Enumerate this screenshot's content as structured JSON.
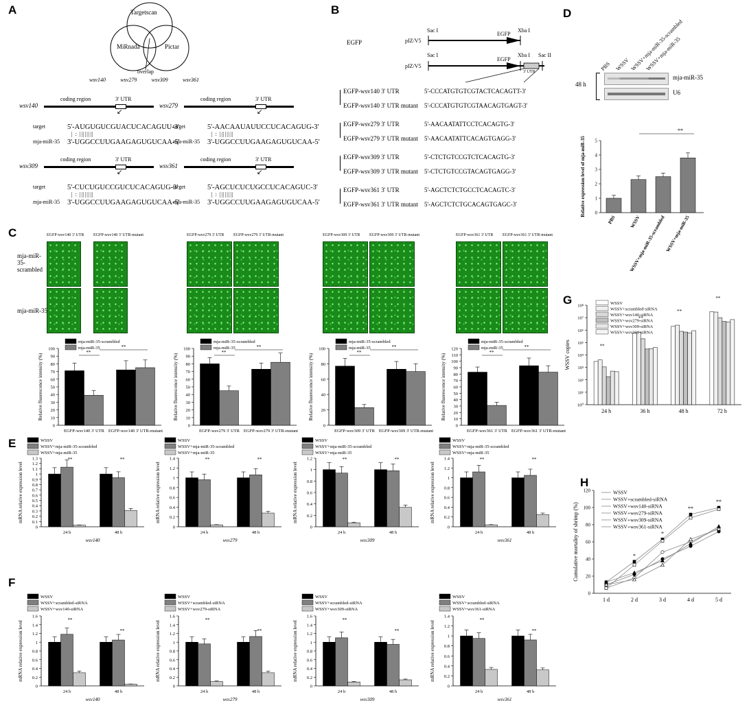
{
  "panels": {
    "A": "A",
    "B": "B",
    "C": "C",
    "D": "D",
    "E": "E",
    "F": "F",
    "G": "G",
    "H": "H"
  },
  "panelA": {
    "venn": {
      "top": "Targetscan",
      "left": "MiRnada",
      "right": "Pictar",
      "overlap": "overlap"
    },
    "genes": [
      "wsv140",
      "wsv279",
      "wsv309",
      "wsv361"
    ],
    "coding_region": "coding region",
    "utr": "3' UTR",
    "target_label": "target",
    "mir_label": "mja-miR-35",
    "targets": [
      {
        "gene": "wsv140",
        "target": "5'-AUGUGUCGUACUCACAGUU-3'",
        "mir": "3'-UGGCCUUGAAGAGUGUCAA-5'"
      },
      {
        "gene": "wsv279",
        "target": "5'-AACAAUAUUCCUCACAGUG-3'",
        "mir": "3'-UGGCCUUGAAGAGUGUCAA-5'"
      },
      {
        "gene": "wsv309",
        "target": "5'-CUCUGUCCGUCUCACAGUG-3'",
        "mir": "3'-UGGCCUUGAAGAGUGUCAA-5'"
      },
      {
        "gene": "wsv361",
        "target": "5'-AGCUCUCUGCCUCACAGUC-3'",
        "mir": "3'-UGGCCUUGAAGAGUGUCAA-5'"
      }
    ]
  },
  "panelB": {
    "egfp": "EGFP",
    "vector": "pIZ/V5",
    "sac1": "Sac I",
    "xba1": "Xba I",
    "sac2": "Sac II",
    "utr": "3' UTR",
    "constructs": [
      {
        "name": "EGFP-wsv140 3' UTR",
        "seq": "5'-CCCATGTGTCGTACTCACAGTT-3'"
      },
      {
        "name": "EGFP-wsv140 3' UTR mutant",
        "seq": "5'-CCCATGTGTCGTAACAGTGAGT-3'"
      },
      {
        "name": "EGFP-wsv279 3' UTR",
        "seq": "5'-AACAATATTCCTCACAGTG-3'"
      },
      {
        "name": "EGFP-wsv279 3' UTR mutant",
        "seq": "5'-AACAATATTCACAGTGAGG-3'"
      },
      {
        "name": "EGFP-wsv309 3' UTR",
        "seq": "5'-CTCTGTCCGTCTCACAGTG-3'"
      },
      {
        "name": "EGFP-wsv309 3' UTR mutant",
        "seq": "5'-CTCTGTCCGTACAGTGAGG-3'"
      },
      {
        "name": "EGFP-wsv361 3' UTR",
        "seq": "5'-AGCTCTCTGCCTCACAGTC-3'"
      },
      {
        "name": "EGFP-wsv361 3' UTR mutant",
        "seq": "5'-AGCTCTCTGCACAGTGAGC-3'"
      }
    ]
  },
  "panelD": {
    "blot_time": "48 h",
    "lanes": [
      "PBS",
      "WSSV",
      "WSSV+mja-miR-35-scrambled",
      "WSSV+mja-miR-35"
    ],
    "bands": [
      "mja-miR-35",
      "U6"
    ],
    "sig": "**"
  },
  "panelC": {
    "row_labels": [
      "mja-miR-35-scrambled",
      "mja-miR-35"
    ],
    "sig": "**",
    "image_headers": [
      [
        "EGFP-wsv140 3' UTR",
        "EGFP-wsv140 3' UTR-mutant"
      ],
      [
        "EGFP-wsv279 3' UTR",
        "EGFP-wsv279 3' UTR-mutant"
      ],
      [
        "EGFP-wsv309 3' UTR",
        "EGFP-wsv309 3' UTR-mutant"
      ],
      [
        "EGFP-wsv361 3' UTR",
        "EGFP-wsv361 3' UTR-mutant"
      ]
    ]
  },
  "panelG": {
    "legend": [
      "WSSV",
      "WSSV+scrambled-siRNA",
      "WSSV+wsv140-siRNA",
      "WSSV+wsv279-siRNA",
      "WSSV+wsv309-siRNA",
      "WSSV+wsv361-siRNA"
    ],
    "sig": "**"
  },
  "panelH": {
    "legend": [
      "WSSV",
      "WSSV+scrambled-siRNA",
      "WSSV+wsv140-siRNA",
      "WSSV+wsv279-siRNA",
      "WSSV+wsv309-siRNA",
      "WSSV+wsv361-siRNA"
    ],
    "sig": [
      "*",
      "*",
      "**",
      "**"
    ]
  },
  "chart_data": [
    {
      "id": "D",
      "type": "bar",
      "categories": [
        "PBS",
        "WSSV",
        "WSSV+mja-miR-35-scrambled",
        "WSSV+mja-miR-35"
      ],
      "values": [
        1.0,
        2.3,
        2.5,
        3.8
      ],
      "errors": [
        0.2,
        0.25,
        0.25,
        0.35
      ],
      "ylabel": "Relative expression level of mja-miR-35",
      "ylim": [
        0,
        5
      ],
      "yticks": [
        0,
        1,
        2,
        3,
        4,
        5
      ]
    },
    {
      "id": "C1",
      "type": "bar",
      "categories": [
        "EGFP-wsv140 3' UTR",
        "EGFP-wsv140 3' UTR-mutant"
      ],
      "series": [
        {
          "name": "mja-miR-35-scrambled",
          "values": [
            71,
            72
          ]
        },
        {
          "name": "mja-miR-35",
          "values": [
            39,
            75
          ]
        }
      ],
      "errors": [
        [
          10,
          12
        ],
        [
          6,
          10
        ]
      ],
      "ylabel": "Relative fluorescence intensity (%)",
      "ylim": [
        0,
        100
      ],
      "yticks": [
        0,
        10,
        20,
        30,
        40,
        50,
        60,
        70,
        80,
        90,
        100
      ]
    },
    {
      "id": "C2",
      "type": "bar",
      "categories": [
        "EGFP-wsv279 3' UTR",
        "EGFP-wsv279 3' UTR-mutant"
      ],
      "series": [
        {
          "name": "mja-miR-35-scrambled",
          "values": [
            80,
            73
          ]
        },
        {
          "name": "mja-miR-35",
          "values": [
            45,
            82
          ]
        }
      ],
      "errors": [
        [
          8,
          8
        ],
        [
          6,
          12
        ]
      ],
      "ylabel": "Relative fluorescence intensity (%)",
      "ylim": [
        0,
        100
      ],
      "yticks": [
        0,
        10,
        20,
        30,
        40,
        50,
        60,
        70,
        80,
        90,
        100
      ]
    },
    {
      "id": "C3",
      "type": "bar",
      "categories": [
        "EGFP-wsv309 3' UTR",
        "EGFP-wsv309 3' UTR-mutant"
      ],
      "series": [
        {
          "name": "mja-miR-35-scrambled",
          "values": [
            77,
            73
          ]
        },
        {
          "name": "mja-miR-35",
          "values": [
            23,
            70
          ]
        }
      ],
      "errors": [
        [
          10,
          10
        ],
        [
          4,
          10
        ]
      ],
      "ylabel": "Relative fluorescence intensity (%)",
      "ylim": [
        0,
        100
      ],
      "yticks": [
        0,
        20,
        40,
        60,
        80,
        100
      ]
    },
    {
      "id": "C4",
      "type": "bar",
      "categories": [
        "EGFP-wsv361 3' UTR",
        "EGFP-wsv361 3' UTR-mutant"
      ],
      "series": [
        {
          "name": "mja-miR-35-scrambled",
          "values": [
            83,
            93
          ]
        },
        {
          "name": "mja-miR-35",
          "values": [
            31,
            83
          ]
        }
      ],
      "errors": [
        [
          8,
          12
        ],
        [
          5,
          10
        ]
      ],
      "ylabel": "Relative fluorescence intensity (%)",
      "ylim": [
        0,
        120
      ],
      "yticks": [
        0,
        10,
        20,
        30,
        40,
        50,
        60,
        70,
        80,
        90,
        100,
        110,
        120
      ]
    },
    {
      "id": "E1",
      "type": "bar",
      "categories": [
        "24 h",
        "48 h"
      ],
      "xlabel": "wsv140",
      "series": [
        {
          "name": "WSSV",
          "values": [
            1.0,
            1.0
          ]
        },
        {
          "name": "WSSV+mja-miR-35-scrambled",
          "values": [
            1.13,
            0.93
          ]
        },
        {
          "name": "WSSV+mja-miR-35",
          "values": [
            0.03,
            0.31
          ]
        }
      ],
      "ylabel": "mRNA relative expression level",
      "ylim": [
        0,
        1.3
      ],
      "yticks": [
        0,
        0.1,
        0.2,
        0.3,
        0.4,
        0.5,
        0.6,
        0.7,
        0.8,
        0.9,
        1.0,
        1.1,
        1.2,
        1.3
      ]
    },
    {
      "id": "E2",
      "type": "bar",
      "categories": [
        "24 h",
        "48 h"
      ],
      "xlabel": "wsv279",
      "series": [
        {
          "name": "WSSV",
          "values": [
            1.0,
            1.0
          ]
        },
        {
          "name": "WSSV+mja-miR-35-scrambled",
          "values": [
            0.96,
            1.06
          ]
        },
        {
          "name": "WSSV+mja-miR-35",
          "values": [
            0.04,
            0.28
          ]
        }
      ],
      "ylabel": "mRNA relative expression level",
      "ylim": [
        0,
        1.4
      ],
      "yticks": [
        0,
        0.2,
        0.4,
        0.6,
        0.8,
        1.0,
        1.2,
        1.4
      ]
    },
    {
      "id": "E3",
      "type": "bar",
      "categories": [
        "24 h",
        "48 h"
      ],
      "xlabel": "wsv309",
      "series": [
        {
          "name": "WSSV",
          "values": [
            1.0,
            1.0
          ]
        },
        {
          "name": "WSSV+mja-miR-35-scrambled",
          "values": [
            0.94,
            0.98
          ]
        },
        {
          "name": "WSSV+mja-miR-35",
          "values": [
            0.07,
            0.34
          ]
        }
      ],
      "ylabel": "mRNA relative expression level",
      "ylim": [
        0,
        1.2
      ],
      "yticks": [
        0,
        0.2,
        0.4,
        0.6,
        0.8,
        1.0,
        1.2
      ]
    },
    {
      "id": "E4",
      "type": "bar",
      "categories": [
        "24 h",
        "48 h"
      ],
      "xlabel": "wsv361",
      "series": [
        {
          "name": "WSSV",
          "values": [
            1.0,
            1.0
          ]
        },
        {
          "name": "WSSV+mja-miR-35-scrambled",
          "values": [
            1.12,
            1.05
          ]
        },
        {
          "name": "WSSV+mja-miR-35",
          "values": [
            0.04,
            0.25
          ]
        }
      ],
      "ylabel": "mRNA relative expression level",
      "ylim": [
        0,
        1.4
      ],
      "yticks": [
        0,
        0.2,
        0.4,
        0.6,
        0.8,
        1.0,
        1.2,
        1.4
      ]
    },
    {
      "id": "F1",
      "type": "bar",
      "categories": [
        "24 h",
        "48 h"
      ],
      "xlabel": "wsv140",
      "series": [
        {
          "name": "WSSV",
          "values": [
            1.0,
            1.0
          ]
        },
        {
          "name": "WSSV+scrambled-siRNA",
          "values": [
            1.18,
            1.05
          ]
        },
        {
          "name": "WSSV+wsv140-siRNA",
          "values": [
            0.3,
            0.04
          ]
        }
      ],
      "ylabel": "mRNA relative expression level",
      "ylim": [
        0,
        1.6
      ],
      "yticks": [
        0,
        0.2,
        0.4,
        0.6,
        0.8,
        1.0,
        1.2,
        1.4,
        1.6
      ]
    },
    {
      "id": "F2",
      "type": "bar",
      "categories": [
        "24 h",
        "48 h"
      ],
      "xlabel": "wsv279",
      "series": [
        {
          "name": "WSSV",
          "values": [
            1.0,
            1.0
          ]
        },
        {
          "name": "WSSV+scrambled-siRNA",
          "values": [
            0.96,
            1.13
          ]
        },
        {
          "name": "WSSV+wsv279-siRNA",
          "values": [
            0.1,
            0.3
          ]
        }
      ],
      "ylabel": "mRNA relative expression level",
      "ylim": [
        0,
        1.6
      ],
      "yticks": [
        0,
        0.2,
        0.4,
        0.6,
        0.8,
        1.0,
        1.2,
        1.4,
        1.6
      ]
    },
    {
      "id": "F3",
      "type": "bar",
      "categories": [
        "24 h",
        "48 h"
      ],
      "xlabel": "wsv309",
      "series": [
        {
          "name": "WSSV",
          "values": [
            1.0,
            1.0
          ]
        },
        {
          "name": "WSSV+scrambled-siRNA",
          "values": [
            1.1,
            0.95
          ]
        },
        {
          "name": "WSSV+wsv309-siRNA",
          "values": [
            0.09,
            0.14
          ]
        }
      ],
      "ylabel": "mRNA relative expression level",
      "ylim": [
        0,
        1.6
      ],
      "yticks": [
        0,
        0.2,
        0.4,
        0.6,
        0.8,
        1.0,
        1.2,
        1.4,
        1.6
      ]
    },
    {
      "id": "F4",
      "type": "bar",
      "categories": [
        "24 h",
        "48 h"
      ],
      "xlabel": "wsv361",
      "series": [
        {
          "name": "WSSV",
          "values": [
            1.0,
            1.0
          ]
        },
        {
          "name": "WSSV+scrambled-siRNA",
          "values": [
            0.95,
            0.92
          ]
        },
        {
          "name": "WSSV+wsv361-siRNA",
          "values": [
            0.33,
            0.32
          ]
        }
      ],
      "ylabel": "mRNA relative expression level",
      "ylim": [
        0,
        1.4
      ],
      "yticks": [
        0,
        0.2,
        0.4,
        0.6,
        0.8,
        1.0,
        1.2,
        1.4
      ]
    },
    {
      "id": "G",
      "type": "bar",
      "yscale": "log",
      "categories": [
        "24 h",
        "36 h",
        "48 h",
        "72 h"
      ],
      "series": [
        {
          "name": "WSSV",
          "values": [
            3000,
            600000,
            2000000,
            30000000
          ]
        },
        {
          "name": "WSSV+scrambled-siRNA",
          "values": [
            4000,
            700000,
            2500000,
            28000000
          ]
        },
        {
          "name": "WSSV+wsv140-siRNA",
          "values": [
            1100,
            200000,
            800000,
            10000000
          ]
        },
        {
          "name": "WSSV+wsv279-siRNA",
          "values": [
            180,
            30000,
            700000,
            5000000
          ]
        },
        {
          "name": "WSSV+wsv309-siRNA",
          "values": [
            500,
            32000,
            600000,
            4500000
          ]
        },
        {
          "name": "WSSV+wsv361-siRNA",
          "values": [
            450,
            40000,
            900000,
            7000000
          ]
        }
      ],
      "ylabel": "WSSV copies",
      "ylim": [
        1,
        100000000
      ],
      "yticks": [
        "10⁰",
        "10¹",
        "10²",
        "10³",
        "10⁴",
        "10⁵",
        "10⁶",
        "10⁷",
        "10⁸"
      ]
    },
    {
      "id": "H",
      "type": "line",
      "x": [
        "1 d",
        "2 d",
        "3 d",
        "4 d",
        "5 d"
      ],
      "series": [
        {
          "name": "WSSV",
          "values": [
            13,
            37,
            63,
            92,
            100
          ]
        },
        {
          "name": "WSSV+scrambled-siRNA",
          "values": [
            6,
            33,
            61,
            88,
            98
          ]
        },
        {
          "name": "WSSV+wsv140-siRNA",
          "values": [
            10,
            22,
            40,
            55,
            72
          ]
        },
        {
          "name": "WSSV+wsv279-siRNA",
          "values": [
            6,
            18,
            48,
            60,
            76
          ]
        },
        {
          "name": "WSSV+wsv309-siRNA",
          "values": [
            13,
            24,
            38,
            58,
            78
          ]
        },
        {
          "name": "WSSV+wsv361-siRNA",
          "values": [
            10,
            16,
            33,
            63,
            75
          ]
        }
      ],
      "ylabel": "Cumulative mortality of shrimp (%)",
      "ylim": [
        0,
        120
      ],
      "yticks": [
        0,
        20,
        40,
        60,
        80,
        100,
        120
      ]
    }
  ]
}
